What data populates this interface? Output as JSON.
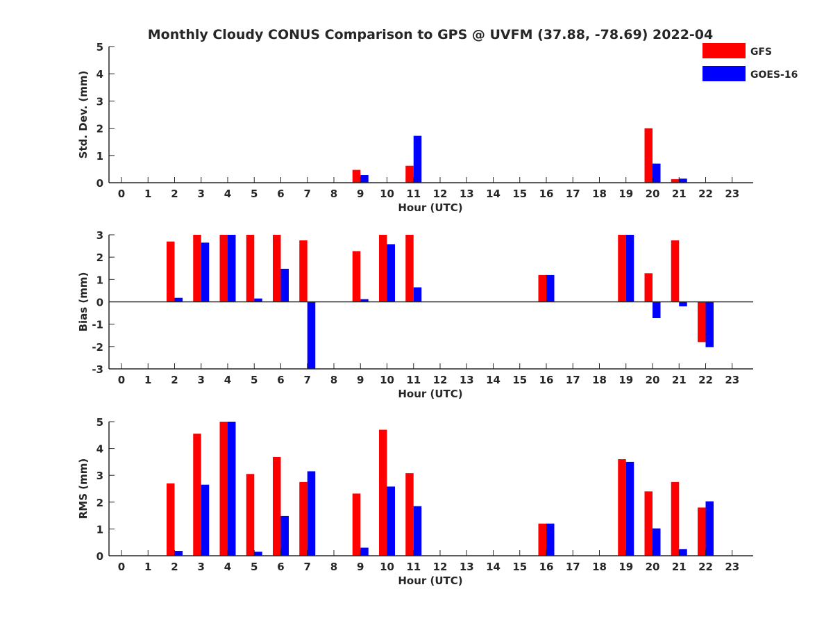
{
  "title": "Monthly Cloudy CONUS Comparison to GPS @ UVFM (37.88, -78.69) 2022-04",
  "legend": {
    "placement": "top-right",
    "items": [
      {
        "name": "GFS",
        "color": "#ff0000"
      },
      {
        "name": "GOES-16",
        "color": "#0000ff"
      }
    ]
  },
  "chart_data": [
    {
      "type": "bar",
      "xlabel": "Hour (UTC)",
      "ylabel": "Std. Dev. (mm)",
      "ylim": [
        0,
        5
      ],
      "yticks": [
        0,
        1,
        2,
        3,
        4,
        5
      ],
      "categories": [
        "0",
        "1",
        "2",
        "3",
        "4",
        "5",
        "6",
        "7",
        "8",
        "9",
        "10",
        "11",
        "12",
        "13",
        "14",
        "15",
        "16",
        "17",
        "18",
        "19",
        "20",
        "21",
        "22",
        "23"
      ],
      "series": [
        {
          "name": "GFS",
          "color": "#ff0000",
          "values": [
            null,
            null,
            null,
            null,
            null,
            null,
            null,
            null,
            null,
            0.47,
            null,
            0.62,
            null,
            null,
            null,
            null,
            null,
            null,
            null,
            null,
            2.0,
            0.13,
            null,
            null
          ]
        },
        {
          "name": "GOES-16",
          "color": "#0000ff",
          "values": [
            null,
            null,
            null,
            null,
            null,
            null,
            null,
            null,
            null,
            0.28,
            null,
            1.72,
            null,
            null,
            null,
            null,
            null,
            null,
            null,
            null,
            0.7,
            0.15,
            null,
            null
          ]
        }
      ]
    },
    {
      "type": "bar",
      "xlabel": "Hour (UTC)",
      "ylabel": "Bias (mm)",
      "ylim": [
        -3,
        3
      ],
      "yticks": [
        -3,
        -2,
        -1,
        0,
        1,
        2,
        3
      ],
      "categories": [
        "0",
        "1",
        "2",
        "3",
        "4",
        "5",
        "6",
        "7",
        "8",
        "9",
        "10",
        "11",
        "12",
        "13",
        "14",
        "15",
        "16",
        "17",
        "18",
        "19",
        "20",
        "21",
        "22",
        "23"
      ],
      "series": [
        {
          "name": "GFS",
          "color": "#ff0000",
          "values": [
            null,
            null,
            2.7,
            3.0,
            3.0,
            3.0,
            3.0,
            2.75,
            null,
            2.27,
            3.0,
            3.0,
            null,
            null,
            null,
            null,
            1.2,
            null,
            null,
            3.0,
            1.28,
            2.75,
            -1.8,
            null
          ]
        },
        {
          "name": "GOES-16",
          "color": "#0000ff",
          "values": [
            null,
            null,
            0.18,
            2.65,
            3.0,
            0.15,
            1.48,
            -3.0,
            null,
            0.12,
            2.58,
            0.65,
            null,
            null,
            null,
            null,
            1.2,
            null,
            null,
            3.0,
            -0.73,
            -0.2,
            -2.03,
            null
          ]
        }
      ]
    },
    {
      "type": "bar",
      "xlabel": "Hour (UTC)",
      "ylabel": "RMS (mm)",
      "ylim": [
        0,
        5
      ],
      "yticks": [
        0,
        1,
        2,
        3,
        4,
        5
      ],
      "categories": [
        "0",
        "1",
        "2",
        "3",
        "4",
        "5",
        "6",
        "7",
        "8",
        "9",
        "10",
        "11",
        "12",
        "13",
        "14",
        "15",
        "16",
        "17",
        "18",
        "19",
        "20",
        "21",
        "22",
        "23"
      ],
      "series": [
        {
          "name": "GFS",
          "color": "#ff0000",
          "values": [
            null,
            null,
            2.7,
            4.55,
            5.0,
            3.05,
            3.68,
            2.75,
            null,
            2.32,
            4.7,
            3.08,
            null,
            null,
            null,
            null,
            1.2,
            null,
            null,
            3.6,
            2.4,
            2.75,
            1.8,
            null
          ]
        },
        {
          "name": "GOES-16",
          "color": "#0000ff",
          "values": [
            null,
            null,
            0.18,
            2.65,
            5.0,
            0.15,
            1.48,
            3.15,
            null,
            0.3,
            2.58,
            1.85,
            null,
            null,
            null,
            null,
            1.2,
            null,
            null,
            3.5,
            1.02,
            0.25,
            2.03,
            null
          ]
        }
      ]
    }
  ]
}
